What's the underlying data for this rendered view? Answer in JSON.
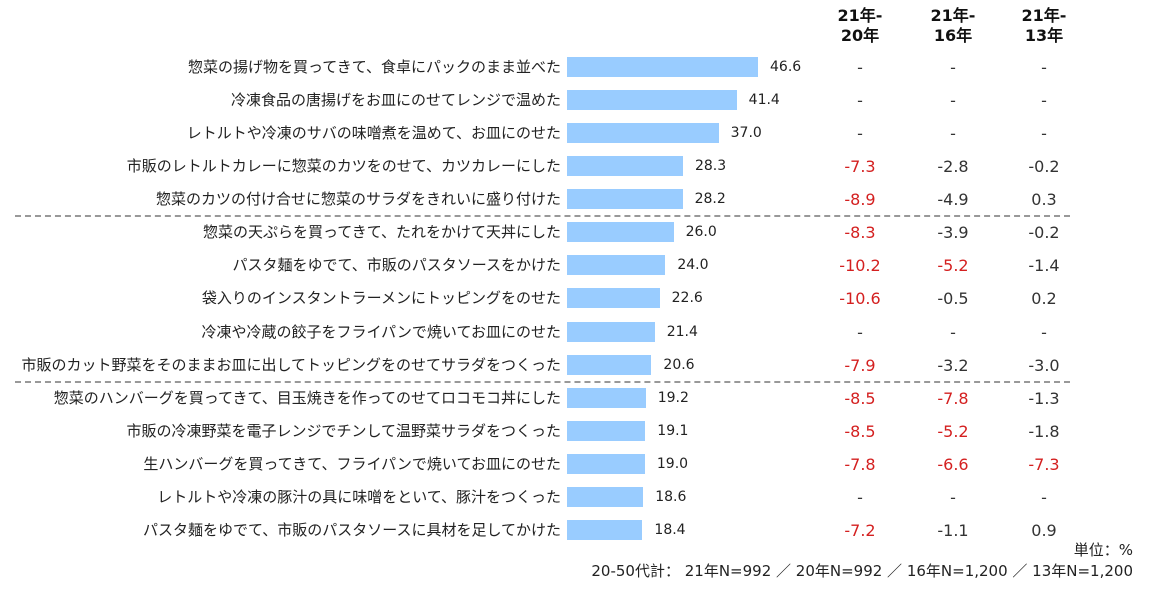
{
  "chart_data": {
    "type": "bar",
    "orientation": "horizontal",
    "bar_color": "#99ccff",
    "significant_color": "#d42020",
    "columns": [
      "21年-\n20年",
      "21年-\n16年",
      "21年-\n13年"
    ],
    "categories": [
      "惣菜の揚げ物を買ってきて、食卓にパックのまま並べた",
      "冷凍食品の唐揚げをお皿にのせてレンジで温めた",
      "レトルトや冷凍のサバの味噌煮を温めて、お皿にのせた",
      "市販のレトルトカレーに惣菜のカツをのせて、カツカレーにした",
      "惣菜のカツの付け合せに惣菜のサラダをきれいに盛り付けた",
      "惣菜の天ぷらを買ってきて、たれをかけて天丼にした",
      "パスタ麺をゆでて、市販のパスタソースをかけた",
      "袋入りのインスタントラーメンにトッピングをのせた",
      "冷凍や冷蔵の餃子をフライパンで焼いてお皿にのせた",
      "市販のカット野菜をそのままお皿に出してトッピングをのせてサラダをつくった",
      "惣菜のハンバーグを買ってきて、目玉焼きを作ってのせてロコモコ丼にした",
      "市販の冷凍野菜を電子レンジでチンして温野菜サラダをつくった",
      "生ハンバーグを買ってきて、フライパンで焼いてお皿にのせた",
      "レトルトや冷凍の豚汁の具に味噌をといて、豚汁をつくった",
      "パスタ麺をゆでて、市販のパスタソースに具材を足してかけた"
    ],
    "values": [
      46.6,
      41.4,
      37.0,
      28.3,
      28.2,
      26.0,
      24.0,
      22.6,
      21.4,
      20.6,
      19.2,
      19.1,
      19.0,
      18.6,
      18.4
    ],
    "value_labels": [
      "46.6",
      "41.4",
      "37.0",
      "28.3",
      "28.2",
      "26.0",
      "24.0",
      "22.6",
      "21.4",
      "20.6",
      "19.2",
      "19.1",
      "19.0",
      "18.6",
      "18.4"
    ],
    "diffs": [
      [
        "-",
        "-",
        "-"
      ],
      [
        "-",
        "-",
        "-"
      ],
      [
        "-",
        "-",
        "-"
      ],
      [
        "-7.3",
        "-2.8",
        "-0.2"
      ],
      [
        "-8.9",
        "-4.9",
        "0.3"
      ],
      [
        "-8.3",
        "-3.9",
        "-0.2"
      ],
      [
        "-10.2",
        "-5.2",
        "-1.4"
      ],
      [
        "-10.6",
        "-0.5",
        "0.2"
      ],
      [
        "-",
        "-",
        "-"
      ],
      [
        "-7.9",
        "-3.2",
        "-3.0"
      ],
      [
        "-8.5",
        "-7.8",
        "-1.3"
      ],
      [
        "-8.5",
        "-5.2",
        "-1.8"
      ],
      [
        "-7.8",
        "-6.6",
        "-7.3"
      ],
      [
        "-",
        "-",
        "-"
      ],
      [
        "-7.2",
        "-1.1",
        "0.9"
      ]
    ],
    "significant": [
      [
        0,
        0,
        0
      ],
      [
        0,
        0,
        0
      ],
      [
        0,
        0,
        0
      ],
      [
        1,
        0,
        0
      ],
      [
        1,
        0,
        0
      ],
      [
        1,
        0,
        0
      ],
      [
        1,
        1,
        0
      ],
      [
        1,
        0,
        0
      ],
      [
        0,
        0,
        0
      ],
      [
        1,
        0,
        0
      ],
      [
        1,
        1,
        0
      ],
      [
        1,
        1,
        0
      ],
      [
        1,
        1,
        1
      ],
      [
        0,
        0,
        0
      ],
      [
        1,
        0,
        0
      ]
    ],
    "group_separators_after": [
      5,
      10
    ],
    "unit": "単位：%",
    "note": "20-50代計： 21年N=992 ／ 20年N=992 ／ 16年N=1,200 ／ 13年N=1,200"
  }
}
